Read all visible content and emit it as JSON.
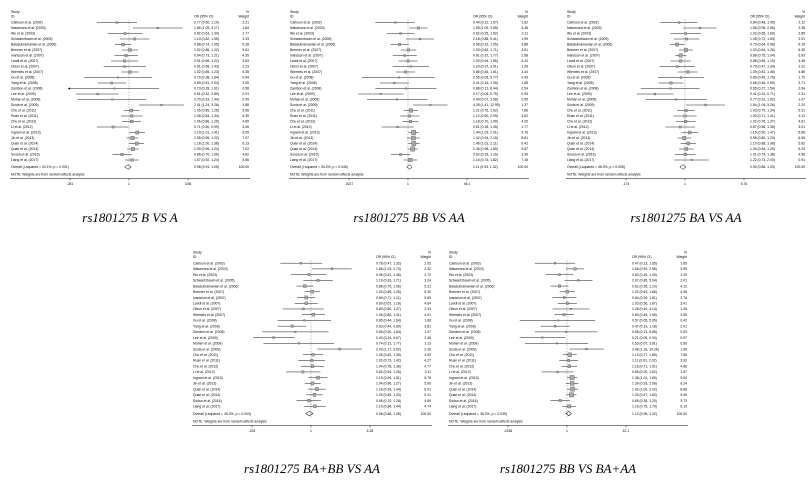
{
  "figure": {
    "columns": {
      "study_line1": "Study",
      "study_line2": "ID",
      "or_header": "OR (95% CI)",
      "weight_line1": "%",
      "weight_line2": "Weight"
    },
    "note": "NOTE: Weights are from random effects analysis",
    "study_ids": [
      "Calhoun et al. (2002)",
      "Nakamura et al. (2003)",
      "Wu et al. (2003)",
      "Schwartzbaum et al. (2005)",
      "Balasubramanian et al. (2006)",
      "Brenner et al. (2007)",
      "Ivansson et al. (2007)",
      "Landi et al. (2007)",
      "Olson et al. (2007)",
      "Wiemels et al. (2007)",
      "Gu et al. (2008)",
      "Yang et al. (2008)",
      "Zambon et al. (2008)",
      "Lee et al. (2009)",
      "Mohan et al. (2009)",
      "Scola et al. (2009)",
      "Chu et al. (2011)",
      "Ruan et al. (2011)",
      "Chu et al. (2012)",
      "Li et al. (2012)",
      "Ingram et al. (2013)",
      "Jin et al. (2013)",
      "Quan et al. (2014)",
      "Quan et al. (2014)",
      "Sousa et al. (2016)",
      "Liang et al. (2017)"
    ]
  },
  "chart_data": [
    {
      "type": "forest",
      "caption": "rs1801275 B VS A",
      "x_ticks": [
        ".281",
        "1",
        "3.56"
      ],
      "x_range": [
        0.281,
        3.56
      ],
      "overall": {
        "label": "Overall (I-squared = 53.1%, p = 0.001)",
        "or": 0.98,
        "lo": 0.91,
        "hi": 1.05,
        "weight": "100.00"
      },
      "values": [
        [
          0.77,
          0.5,
          1.19,
          2.21
        ],
        [
          1.86,
          1.09,
          3.17,
          1.84
        ],
        [
          0.92,
          0.63,
          1.34,
          2.77
        ],
        [
          1.13,
          0.82,
          1.55,
          3.33
        ],
        [
          0.88,
          0.74,
          1.05,
          5.28
        ],
        [
          1.02,
          0.86,
          1.22,
          5.61
        ],
        [
          0.94,
          0.73,
          1.21,
          4.35
        ],
        [
          0.91,
          0.68,
          1.22,
          3.83
        ],
        [
          0.91,
          0.58,
          1.43,
          2.23
        ],
        [
          1.02,
          0.85,
          1.23,
          5.35
        ],
        [
          0.79,
          0.38,
          1.64,
          0.94
        ],
        [
          0.69,
          0.51,
          0.94,
          3.05
        ],
        [
          0.73,
          0.28,
          1.91,
          0.58
        ],
        [
          0.51,
          0.32,
          0.8,
          2.01
        ],
        [
          0.7,
          0.33,
          1.44,
          0.99
        ],
        [
          2.01,
          1.24,
          3.26,
          1.88
        ],
        [
          1.05,
          0.89,
          1.25,
          5.66
        ],
        [
          1.06,
          0.84,
          1.34,
          4.39
        ],
        [
          1.06,
          0.86,
          1.29,
          4.89
        ],
        [
          0.71,
          0.5,
          0.99,
          3.06
        ],
        [
          1.19,
          1.01,
          1.41,
          6.05
        ],
        [
          1.08,
          0.95,
          1.22,
          7.07
        ],
        [
          1.18,
          1.0,
          1.38,
          6.13
        ],
        [
          1.09,
          0.96,
          1.24,
          7.02
        ],
        [
          0.86,
          0.7,
          1.06,
          4.82
        ],
        [
          1.07,
          0.92,
          1.24,
          4.66
        ]
      ]
    },
    {
      "type": "forest",
      "caption": "rs1801275 BB VS AA",
      "x_ticks": [
        ".0217",
        "1",
        "46.1"
      ],
      "x_range": [
        0.0217,
        46.1
      ],
      "overall": {
        "label": "Overall (I-squared = 34.2%, p = 0.046)",
        "or": 1.11,
        "lo": 0.93,
        "hi": 1.32,
        "weight": "100.00"
      },
      "values": [
        [
          0.44,
          0.12,
          1.57,
          1.62
        ],
        [
          1.98,
          1.09,
          3.58,
          3.48
        ],
        [
          0.62,
          0.25,
          1.52,
          2.11
        ],
        [
          2.18,
          0.88,
          5.41,
          1.99
        ],
        [
          0.58,
          0.32,
          1.05,
          3.88
        ],
        [
          1.03,
          0.62,
          1.71,
          4.61
        ],
        [
          0.81,
          0.37,
          1.77,
          2.68
        ],
        [
          1.0,
          0.54,
          1.86,
          3.24
        ],
        [
          1.2,
          0.37,
          3.91,
          1.26
        ],
        [
          0.85,
          0.45,
          1.61,
          3.44
        ],
        [
          0.55,
          0.05,
          5.77,
          0.43
        ],
        [
          0.41,
          0.16,
          1.05,
          1.85
        ],
        [
          0.88,
          0.12,
          6.44,
          0.54
        ],
        [
          0.17,
          0.04,
          0.75,
          0.93
        ],
        [
          0.49,
          0.07,
          3.58,
          0.55
        ],
        [
          4.28,
          1.41,
          12.99,
          1.37
        ],
        [
          1.21,
          0.76,
          1.92,
          7.86
        ],
        [
          1.12,
          0.6,
          2.09,
          3.52
        ],
        [
          1.18,
          0.7,
          1.99,
          4.2
        ],
        [
          0.51,
          0.18,
          1.45,
          1.77
        ],
        [
          1.44,
          1.03,
          2.01,
          9.76
        ],
        [
          1.42,
          0.94,
          2.15,
          8.81
        ],
        [
          1.46,
          1.01,
          2.11,
          9.42
        ],
        [
          1.36,
          0.98,
          1.89,
          9.87
        ],
        [
          0.62,
          0.33,
          1.16,
          3.36
        ],
        [
          1.16,
          0.74,
          1.82,
          7.45
        ]
      ]
    },
    {
      "type": "forest",
      "caption": "rs1801275 BA VS AA",
      "x_ticks": [
        ".174",
        "1",
        "5.76"
      ],
      "x_range": [
        0.174,
        5.76
      ],
      "overall": {
        "label": "Overall (I-squared = 46.0%, p = 0.005)",
        "or": 0.94,
        "lo": 0.86,
        "hi": 1.03,
        "weight": "100.00"
      },
      "values": [
        [
          0.84,
          0.48,
          1.45,
          2.12
        ],
        [
          1.56,
          0.95,
          2.56,
          2.38
        ],
        [
          1.02,
          0.65,
          1.6,
          2.85
        ],
        [
          1.05,
          0.72,
          1.53,
          2.91
        ],
        [
          0.79,
          0.64,
          0.98,
          6.19
        ],
        [
          1.03,
          0.84,
          1.26,
          6.35
        ],
        [
          0.88,
          0.75,
          1.04,
          6.93
        ],
        [
          0.88,
          0.65,
          1.19,
          4.48
        ],
        [
          0.79,
          0.47,
          1.34,
          2.22
        ],
        [
          1.09,
          0.81,
          1.46,
          4.86
        ],
        [
          0.89,
          0.45,
          1.76,
          1.7
        ],
        [
          0.66,
          0.46,
          0.95,
          3.71
        ],
        [
          0.65,
          0.27,
          1.54,
          0.94
        ],
        [
          0.41,
          0.24,
          0.71,
          2.31
        ],
        [
          0.77,
          0.31,
          1.92,
          1.07
        ],
        [
          1.84,
          1.04,
          3.26,
          2.2
        ],
        [
          1.03,
          0.79,
          1.34,
          5.31
        ],
        [
          1.0,
          0.71,
          1.41,
          4.11
        ],
        [
          1.02,
          0.76,
          1.37,
          4.61
        ],
        [
          0.87,
          0.56,
          1.35,
          3.01
        ],
        [
          1.15,
          0.9,
          1.47,
          5.66
        ],
        [
          0.98,
          0.8,
          1.2,
          6.55
        ],
        [
          1.1,
          0.88,
          1.38,
          5.82
        ],
        [
          1.04,
          0.84,
          1.29,
          6.24
        ],
        [
          1.01,
          0.74,
          1.38,
          4.56
        ],
        [
          1.22,
          0.73,
          2.03,
          0.91
        ]
      ]
    },
    {
      "type": "forest",
      "caption": "rs1801275 BA+BB VS AA",
      "x_ticks": [
        ".234",
        "1",
        "4.28"
      ],
      "x_range": [
        0.234,
        4.28
      ],
      "overall": {
        "label": "Overall (I-squared = 45.3%, p = 0.003)",
        "or": 0.96,
        "lo": 0.88,
        "hi": 1.05,
        "weight": "100.00"
      },
      "values": [
        [
          0.78,
          0.47,
          1.32,
          2.05
        ],
        [
          1.68,
          1.03,
          2.73,
          2.32
        ],
        [
          0.95,
          0.61,
          1.46,
          2.72
        ],
        [
          1.19,
          0.83,
          1.71,
          3.24
        ],
        [
          0.86,
          0.7,
          1.06,
          5.31
        ],
        [
          1.03,
          0.85,
          1.25,
          5.3
        ],
        [
          0.89,
          0.71,
          1.11,
          5.89
        ],
        [
          0.89,
          0.67,
          1.18,
          4.64
        ],
        [
          0.83,
          0.5,
          1.37,
          2.34
        ],
        [
          1.06,
          0.8,
          1.41,
          4.91
        ],
        [
          0.85,
          0.44,
          1.64,
          1.66
        ],
        [
          0.63,
          0.44,
          0.89,
          3.81
        ],
        [
          0.68,
          0.3,
          1.54,
          1.07
        ],
        [
          0.4,
          0.24,
          0.67,
          2.45
        ],
        [
          0.74,
          0.31,
          1.77,
          1.13
        ],
        [
          2.03,
          1.17,
          3.52,
          2.26
        ],
        [
          1.05,
          0.82,
          1.35,
          4.52
        ],
        [
          1.02,
          0.73,
          1.42,
          4.27
        ],
        [
          1.04,
          0.78,
          1.38,
          4.77
        ],
        [
          0.82,
          0.54,
          1.26,
          3.11
        ],
        [
          1.19,
          0.94,
          1.51,
          5.78
        ],
        [
          1.04,
          0.86,
          1.27,
          5.6
        ],
        [
          1.16,
          0.93,
          1.44,
          6.01
        ],
        [
          1.09,
          0.89,
          1.33,
          5.41
        ],
        [
          0.95,
          0.7,
          1.28,
          4.69
        ],
        [
          1.1,
          0.84,
          1.44,
          4.74
        ]
      ]
    },
    {
      "type": "forest",
      "caption": "rs1801275 BB VS BA+AA",
      "x_ticks": [
        ".0238",
        "1",
        "42.1"
      ],
      "x_range": [
        0.0238,
        42.1
      ],
      "overall": {
        "label": "Overall (I-squared = 36.2%, p = 0.035)",
        "or": 1.12,
        "lo": 0.95,
        "hi": 1.32,
        "weight": "100.00"
      },
      "values": [
        [
          0.47,
          0.13,
          1.65,
          1.65
        ],
        [
          1.66,
          0.93,
          2.96,
          3.95
        ],
        [
          0.62,
          0.26,
          1.49,
          2.29
        ],
        [
          2.07,
          0.85,
          5.04,
          2.01
        ],
        [
          0.62,
          0.35,
          1.1,
          4.12
        ],
        [
          1.02,
          0.63,
          1.66,
          4.95
        ],
        [
          0.84,
          0.39,
          1.81,
          2.78
        ],
        [
          1.03,
          0.56,
          1.87,
          3.41
        ],
        [
          1.28,
          0.4,
          4.14,
          1.26
        ],
        [
          0.83,
          0.45,
          1.55,
          3.55
        ],
        [
          0.57,
          0.05,
          5.95,
          0.42
        ],
        [
          0.47,
          0.19,
          1.18,
          2.01
        ],
        [
          0.95,
          0.13,
          6.85,
          0.53
        ],
        [
          0.21,
          0.05,
          0.9,
          0.97
        ],
        [
          0.53,
          0.07,
          3.81,
          0.56
        ],
        [
          3.48,
          1.18,
          10.26,
          1.5
        ],
        [
          1.19,
          0.77,
          1.85,
          7.56
        ],
        [
          1.11,
          0.61,
          2.02,
          3.92
        ],
        [
          1.16,
          0.71,
          1.91,
          4.66
        ],
        [
          0.55,
          0.2,
          1.52,
          1.87
        ],
        [
          1.38,
          1.01,
          1.89,
          9.54
        ],
        [
          1.39,
          0.93,
          2.08,
          8.24
        ],
        [
          1.42,
          1.0,
          2.02,
          8.88
        ],
        [
          1.33,
          0.97,
          1.82,
          9.45
        ],
        [
          0.65,
          0.35,
          1.2,
          3.73
        ],
        [
          1.16,
          0.75,
          1.79,
          6.19
        ]
      ]
    }
  ]
}
